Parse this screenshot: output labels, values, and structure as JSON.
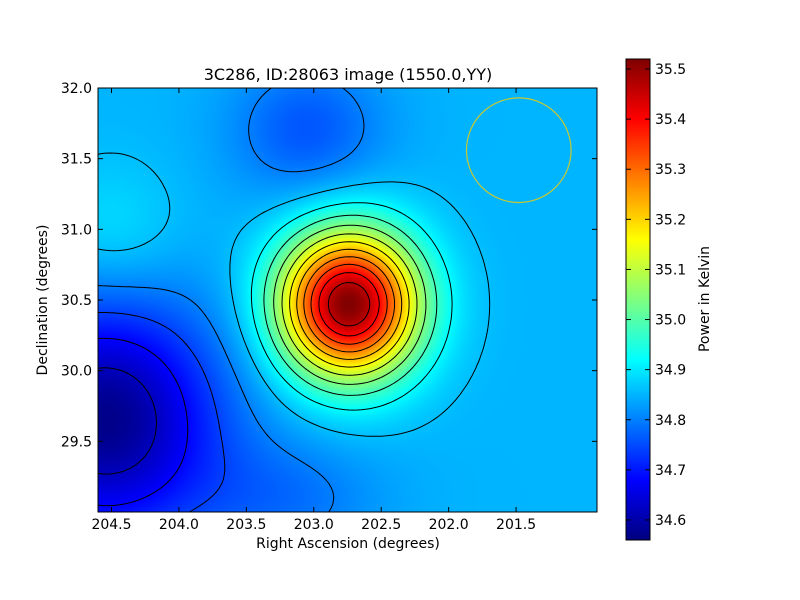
{
  "chart_data": {
    "type": "heatmap",
    "title": "3C286, ID:28063 image (1550.0,YY)",
    "xlabel": "Right Ascension (degrees)",
    "ylabel": "Declination (degrees)",
    "xlim": [
      204.6,
      200.9
    ],
    "ylim": [
      29.0,
      32.0
    ],
    "x_ticks": [
      "204.5",
      "204.0",
      "203.5",
      "203.0",
      "202.5",
      "202.0",
      "201.5"
    ],
    "x_tick_values": [
      204.5,
      204.0,
      203.5,
      203.0,
      202.5,
      202.0,
      201.5
    ],
    "y_ticks": [
      "29.5",
      "30.0",
      "30.5",
      "31.0",
      "31.5",
      "32.0"
    ],
    "y_tick_values": [
      29.5,
      30.0,
      30.5,
      31.0,
      31.5,
      32.0
    ],
    "colormap": "jet",
    "colorbar": {
      "label": "Power in Kelvin",
      "range": [
        34.56,
        35.52
      ],
      "ticks": [
        "34.6",
        "34.7",
        "34.8",
        "34.9",
        "35.0",
        "35.1",
        "35.2",
        "35.3",
        "35.4",
        "35.5"
      ],
      "tick_values": [
        34.6,
        34.7,
        34.8,
        34.9,
        35.0,
        35.1,
        35.2,
        35.3,
        35.4,
        35.5
      ]
    },
    "field": {
      "base": 34.85,
      "components": [
        {
          "kind": "peak",
          "x": 202.74,
          "y": 30.47,
          "amplitude": 0.67,
          "sigma_x": 0.36,
          "sigma_y": 0.36
        },
        {
          "kind": "trough",
          "x": 204.55,
          "y": 29.65,
          "amplitude": -0.28,
          "sigma_x": 0.6,
          "sigma_y": 0.6
        },
        {
          "kind": "trough",
          "x": 203.05,
          "y": 31.7,
          "amplitude": -0.09,
          "sigma_x": 0.4,
          "sigma_y": 0.35
        },
        {
          "kind": "trough",
          "x": 203.2,
          "y": 29.1,
          "amplitude": -0.06,
          "sigma_x": 0.5,
          "sigma_y": 0.3
        },
        {
          "kind": "bump",
          "x": 204.5,
          "y": 30.95,
          "amplitude": 0.05,
          "sigma_x": 0.35,
          "sigma_y": 0.35
        }
      ]
    },
    "contours": {
      "from": 34.62,
      "to": 35.48,
      "step": 0.06,
      "color": "#000000"
    },
    "beam": {
      "center": [
        201.48,
        31.56
      ],
      "radius_deg": 0.37,
      "color": "#c8c832"
    },
    "grid": false
  }
}
